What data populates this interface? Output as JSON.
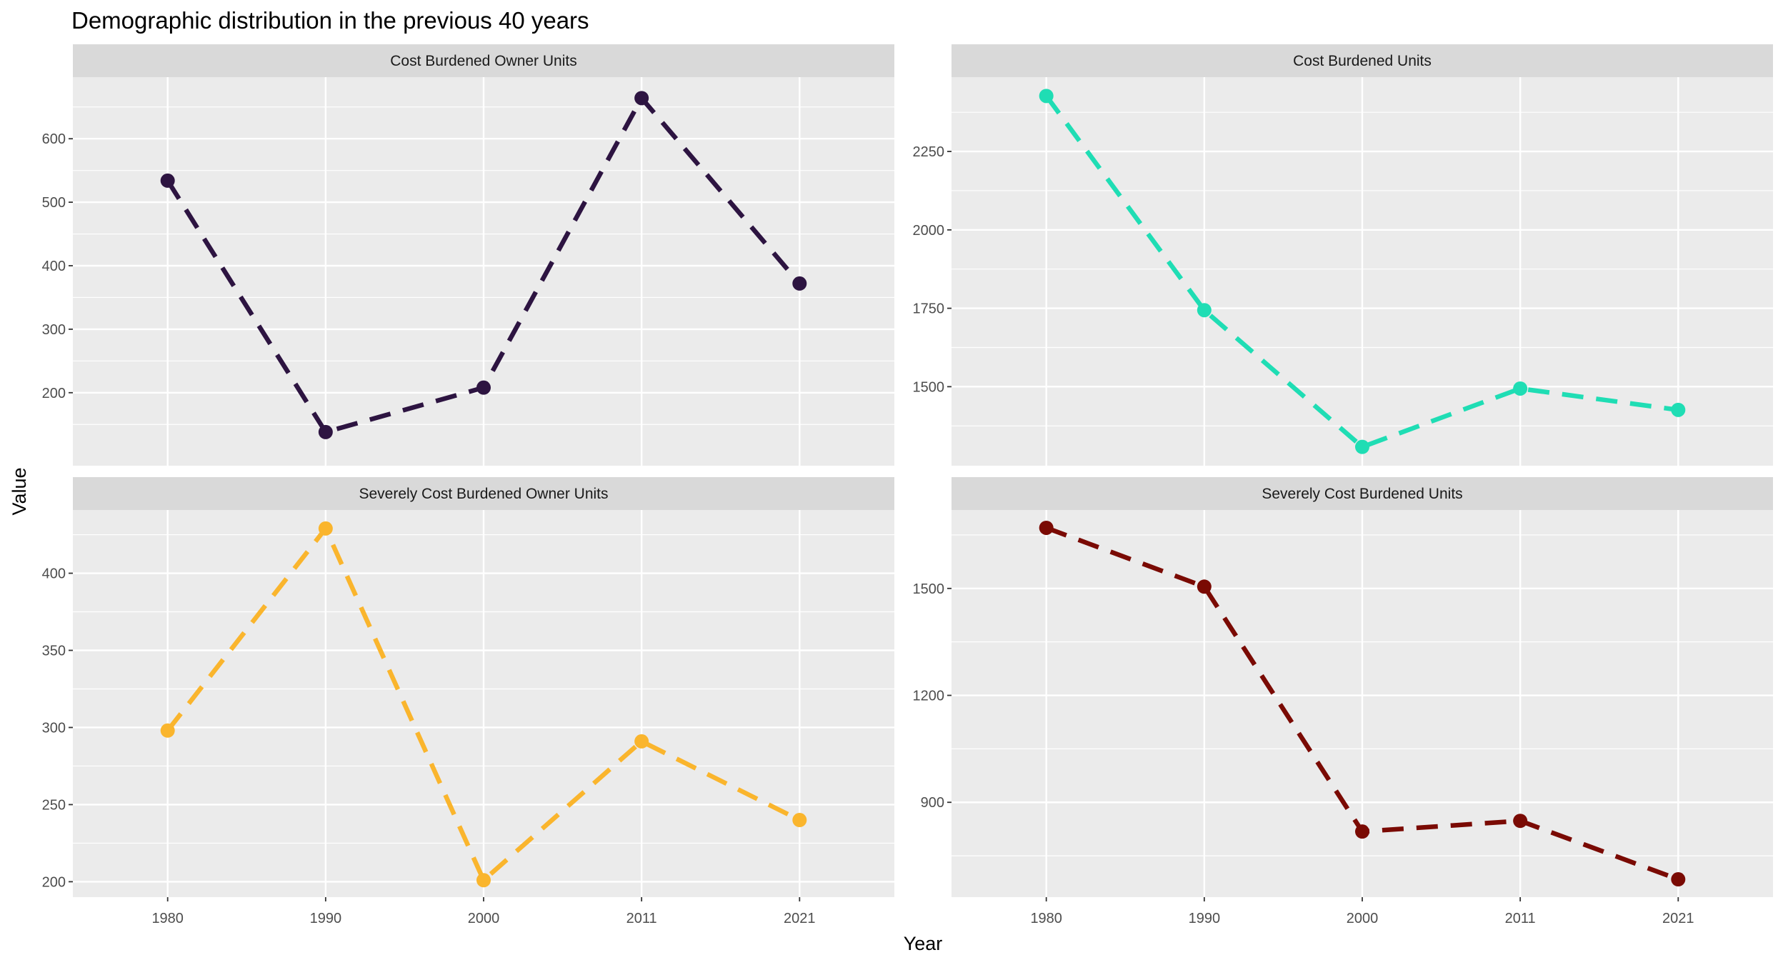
{
  "title": "Demographic distribution in the previous 40 years",
  "xlabel": "Year",
  "ylabel": "Value",
  "chart_data": {
    "type": "line",
    "facet_layout": "2x2, free y scales, shared x",
    "title": "Demographic distribution in the previous 40 years",
    "xlabel": "Year",
    "ylabel": "Value",
    "categories": [
      "1980",
      "1990",
      "2000",
      "2011",
      "2021"
    ],
    "line_style": "dashed with points",
    "grid": true,
    "background": "#ebebeb",
    "strip_background": "#d9d9d9",
    "panels": [
      {
        "name": "Cost Burdened Owner Units",
        "color": "#2d1441",
        "values": [
          534,
          138,
          208,
          664,
          372
        ],
        "ylim": [
          85,
          697
        ],
        "yticks": [
          200,
          300,
          400,
          500,
          600
        ]
      },
      {
        "name": "Cost Burdened Units",
        "color": "#1fddb4",
        "values": [
          2427,
          1744,
          1308,
          1494,
          1426
        ],
        "ylim": [
          1248,
          2487
        ],
        "yticks": [
          1500,
          1750,
          2000,
          2250
        ]
      },
      {
        "name": "Severely Cost Burdened Owner Units",
        "color": "#fab52d",
        "values": [
          298,
          429,
          201,
          291,
          240
        ],
        "ylim": [
          190,
          441
        ],
        "yticks": [
          200,
          250,
          300,
          350,
          400
        ]
      },
      {
        "name": "Severely Cost Burdened Units",
        "color": "#7a0a03",
        "values": [
          1670,
          1505,
          818,
          848,
          684
        ],
        "ylim": [
          634,
          1720
        ],
        "yticks": [
          900,
          1200,
          1500
        ]
      }
    ]
  }
}
